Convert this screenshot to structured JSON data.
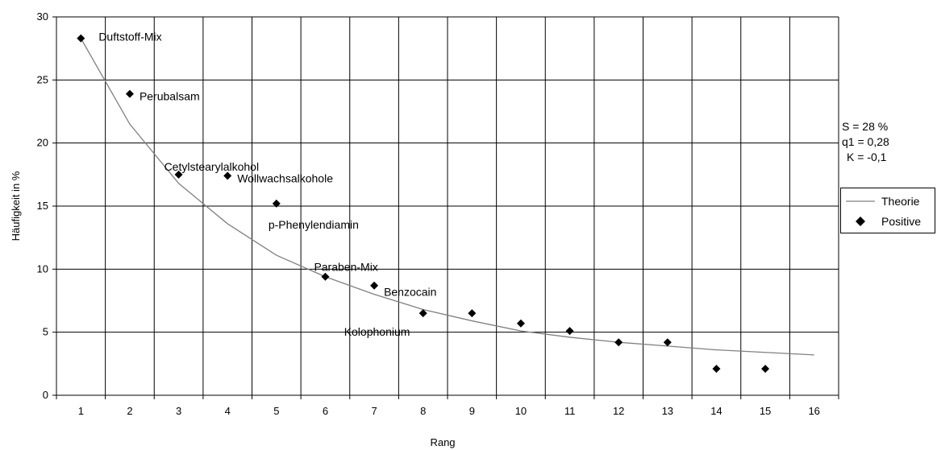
{
  "chart_data": {
    "type": "scatter",
    "title": "",
    "xlabel": "Rang",
    "ylabel": "Häufigkeit in %",
    "xlim": [
      0.5,
      16.5
    ],
    "ylim": [
      0,
      30
    ],
    "x_ticks": [
      "1",
      "2",
      "3",
      "4",
      "5",
      "6",
      "7",
      "8",
      "9",
      "10",
      "11",
      "12",
      "13",
      "14",
      "15",
      "16"
    ],
    "y_ticks": [
      "0",
      "5",
      "10",
      "15",
      "20",
      "25",
      "30"
    ],
    "grid": true,
    "legend_position": "right",
    "series": [
      {
        "name": "Theorie",
        "kind": "line",
        "color": "#808080",
        "x": [
          1,
          2,
          3,
          4,
          5,
          6,
          7,
          8,
          9,
          10,
          11,
          12,
          13,
          14,
          15,
          16
        ],
        "y": [
          28.3,
          21.5,
          16.8,
          13.6,
          11.1,
          9.4,
          8.0,
          6.8,
          5.9,
          5.1,
          4.6,
          4.2,
          3.9,
          3.6,
          3.4,
          3.2
        ]
      },
      {
        "name": "Positive",
        "kind": "marker",
        "marker": "diamond",
        "color": "#000000",
        "x": [
          1,
          2,
          3,
          4,
          5,
          6,
          7,
          8,
          9,
          10,
          11,
          12,
          13,
          14,
          15
        ],
        "y": [
          28.3,
          23.9,
          17.5,
          17.4,
          15.2,
          9.4,
          8.7,
          6.5,
          6.5,
          5.7,
          5.1,
          4.2,
          4.2,
          2.1,
          2.1
        ]
      }
    ],
    "annotations": [
      {
        "text": "Duftstoff-Mix",
        "x": 1
      },
      {
        "text": "Perubalsam",
        "x": 2
      },
      {
        "text": "Cetylstearylalkohol",
        "x": 3
      },
      {
        "text": "Wollwachsalkohole",
        "x": 4
      },
      {
        "text": "p-Phenylendiamin",
        "x": 5
      },
      {
        "text": "Paraben-Mix",
        "x": 6
      },
      {
        "text": "Benzocain",
        "x": 7
      },
      {
        "text": "Kolophonium",
        "x": 8
      }
    ]
  },
  "parameters": [
    "S = 28 %",
    "q1 = 0,28",
    "K = -0,1"
  ],
  "legend": {
    "theorie_label": "Theorie",
    "positive_label": "Positive"
  }
}
